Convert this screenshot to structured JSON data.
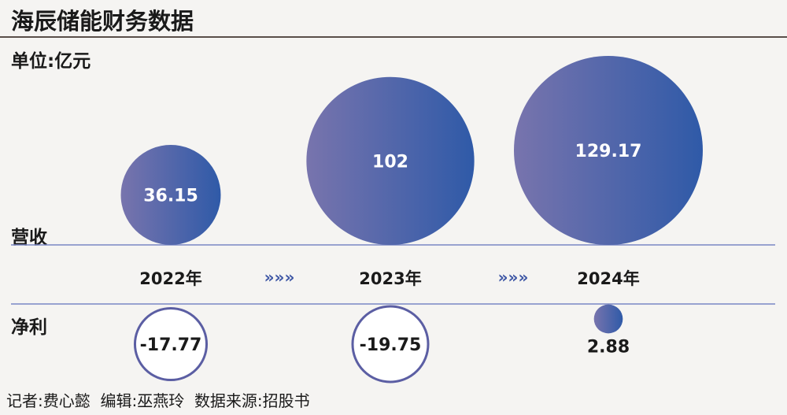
{
  "title": "海辰储能财务数据",
  "unit": "单位:亿元",
  "row_labels": {
    "revenue": "营收",
    "profit": "净利"
  },
  "separator_glyph": "»»»",
  "credits": {
    "reporter": "记者:费心懿",
    "editor": "编辑:巫燕玲",
    "source": "数据来源:招股书"
  },
  "colors": {
    "bubble_start": "#7874ad",
    "bubble_end": "#2f5aa8",
    "ring": "#5b5ea3",
    "rule": "#7a86c4",
    "separator": "#3d56a5"
  },
  "chart_data": {
    "type": "bubble",
    "categories": [
      "2022年",
      "2023年",
      "2024年"
    ],
    "series": [
      {
        "name": "营收",
        "values": [
          36.15,
          102,
          129.17
        ],
        "labels": [
          "36.15",
          "102",
          "129.17"
        ]
      },
      {
        "name": "净利",
        "values": [
          -17.77,
          -19.75,
          2.88
        ],
        "labels": [
          "-17.77",
          "-19.75",
          "2.88"
        ]
      }
    ]
  }
}
